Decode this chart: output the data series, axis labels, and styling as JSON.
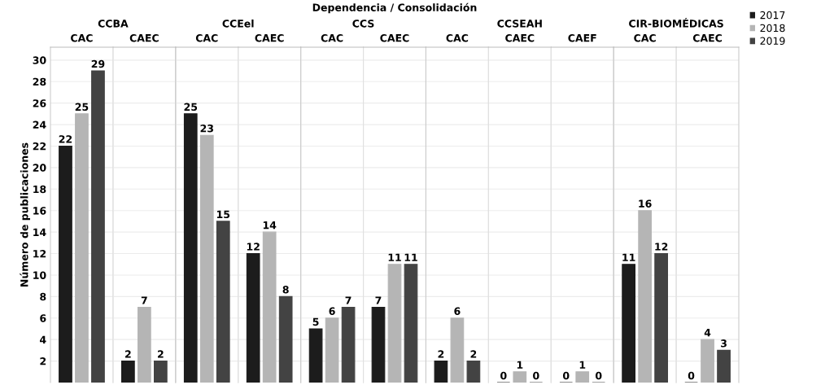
{
  "chart_data": [
    {
      "type": "bar",
      "title": "CCBA",
      "ylabel": "Número de publicaciones",
      "annotations": [
        "Dependencia / Consolidación"
      ],
      "categories": [
        "CAC",
        "CAEC"
      ],
      "series": [
        {
          "color": "#1c1c1c",
          "values": [
            22,
            2
          ]
        },
        {
          "color": "#b5b5b5",
          "values": [
            25,
            7
          ]
        },
        {
          "color": "#434343",
          "values": [
            29,
            2
          ]
        }
      ],
      "ylim": [
        0,
        31.2
      ],
      "yticks": [
        2,
        4,
        6,
        8,
        10,
        12,
        14,
        16,
        18,
        20,
        22,
        24,
        26,
        28,
        30
      ],
      "grid": "y",
      "data_labels": true
    },
    {
      "type": "bar",
      "title": "CCEel",
      "categories": [
        "CAC",
        "CAEC"
      ],
      "series": [
        {
          "color": "#1c1c1c",
          "values": [
            25,
            12
          ]
        },
        {
          "color": "#b5b5b5",
          "values": [
            23,
            14
          ]
        },
        {
          "color": "#434343",
          "values": [
            15,
            8
          ]
        }
      ],
      "ylim": [
        0,
        31.2
      ],
      "yticks": [
        2,
        4,
        6,
        8,
        10,
        12,
        14,
        16,
        18,
        20,
        22,
        24,
        26,
        28,
        30
      ],
      "grid": "y",
      "data_labels": true,
      "tick_labels": "x"
    },
    {
      "type": "bar",
      "title": "CCS",
      "categories": [
        "CAC",
        "CAEC"
      ],
      "series": [
        {
          "color": "#1c1c1c",
          "values": [
            5,
            7
          ]
        },
        {
          "color": "#b5b5b5",
          "values": [
            6,
            11
          ]
        },
        {
          "color": "#434343",
          "values": [
            7,
            11
          ]
        }
      ],
      "ylim": [
        0,
        31.2
      ],
      "yticks": [
        2,
        4,
        6,
        8,
        10,
        12,
        14,
        16,
        18,
        20,
        22,
        24,
        26,
        28,
        30
      ],
      "grid": "y",
      "data_labels": true,
      "tick_labels": "x"
    },
    {
      "type": "bar",
      "title": "CCSEAH",
      "categories": [
        "CAC",
        "CAEC",
        "CAEF"
      ],
      "series": [
        {
          "color": "#1c1c1c",
          "values": [
            2,
            0,
            0
          ]
        },
        {
          "color": "#b5b5b5",
          "values": [
            6,
            1,
            1
          ]
        },
        {
          "color": "#434343",
          "values": [
            2,
            0,
            0
          ]
        }
      ],
      "ylim": [
        0,
        31.2
      ],
      "yticks": [
        2,
        4,
        6,
        8,
        10,
        12,
        14,
        16,
        18,
        20,
        22,
        24,
        26,
        28,
        30
      ],
      "grid": "y",
      "data_labels": true,
      "tick_labels": "x"
    },
    {
      "type": "bar",
      "title": "CIR-BIOMÉDICAS",
      "categories": [
        "CAC",
        "CAEC"
      ],
      "series": [
        {
          "name": "2017",
          "color": "#1c1c1c",
          "values": [
            11,
            0
          ]
        },
        {
          "name": "2018",
          "color": "#b5b5b5",
          "values": [
            16,
            4
          ]
        },
        {
          "name": "2019",
          "color": "#434343",
          "values": [
            12,
            3
          ]
        }
      ],
      "ylim": [
        0,
        31.2
      ],
      "yticks": [
        2,
        4,
        6,
        8,
        10,
        12,
        14,
        16,
        18,
        20,
        22,
        24,
        26,
        28,
        30
      ],
      "grid": "y",
      "data_labels": true,
      "tick_labels": "x",
      "legend": "top right"
    }
  ]
}
